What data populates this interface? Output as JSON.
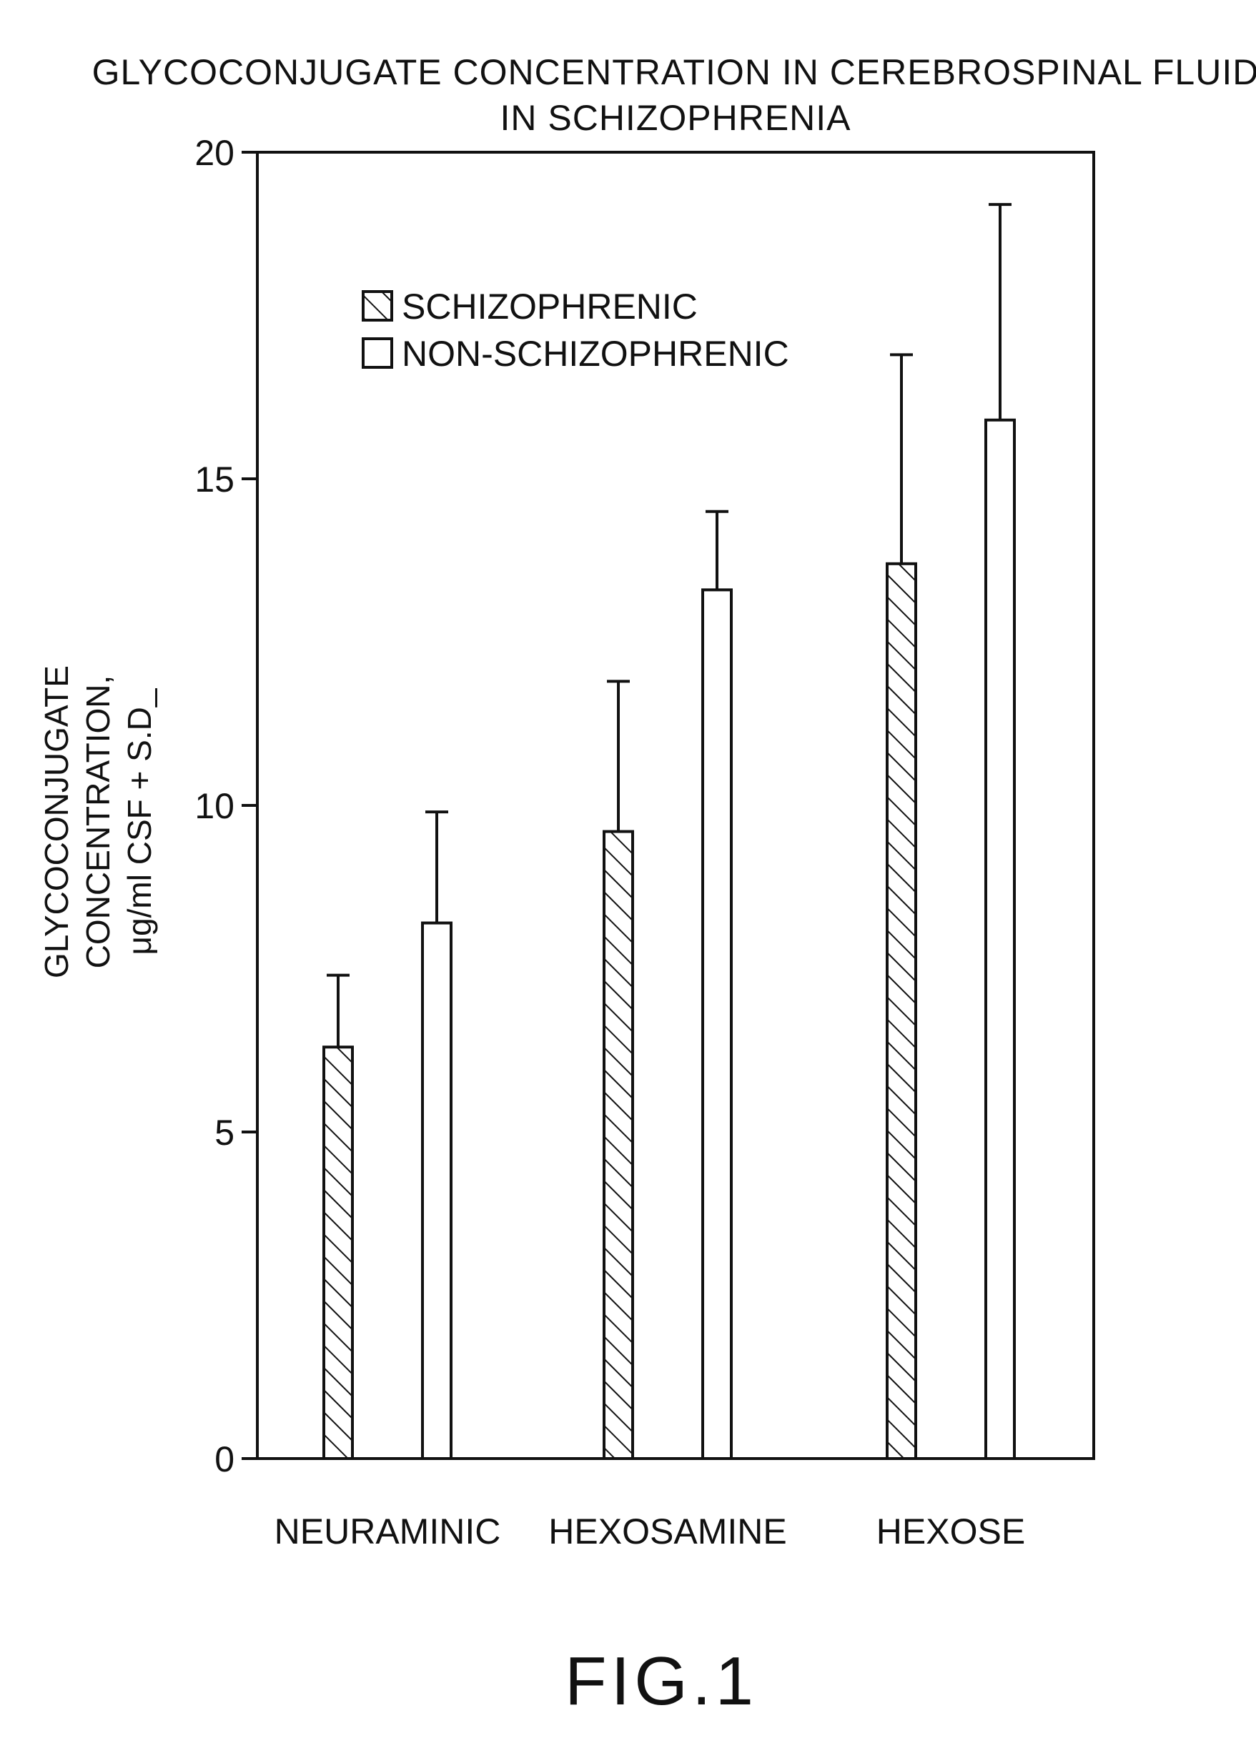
{
  "chart_data": {
    "type": "bar",
    "title_line1": "GLYCOCONJUGATE CONCENTRATION IN CEREBROSPINAL FLUID",
    "title_line2": "IN SCHIZOPHRENIA",
    "ylabel_line1": "GLYCOCONJUGATE",
    "ylabel_line2": "CONCENTRATION,",
    "ylabel_line3": "μg/ml CSF + S.D_",
    "xlabel": "",
    "ylim": [
      0,
      20
    ],
    "yticks": [
      0,
      5,
      10,
      15,
      20
    ],
    "categories": [
      "NEURAMINIC",
      "HEXOSAMINE",
      "HEXOSE"
    ],
    "legend_position": "upper-left inside plot",
    "series": [
      {
        "name": "SCHIZOPHRENIC",
        "pattern": "hatched",
        "values": [
          6.3,
          9.6,
          13.7
        ],
        "error": [
          1.1,
          2.3,
          3.2
        ]
      },
      {
        "name": "NON-SCHIZOPHRENIC",
        "pattern": "open",
        "values": [
          8.2,
          13.3,
          15.9
        ],
        "error": [
          1.7,
          1.2,
          3.3
        ]
      }
    ],
    "grid": false
  },
  "figure_label": "FIG.1",
  "colors": {
    "ink": "#111111",
    "background": "#ffffff"
  }
}
